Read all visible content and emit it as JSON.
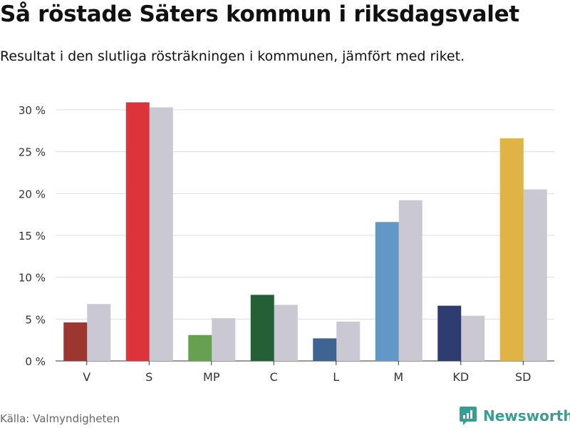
{
  "title": "Så röstade Säters kommun i riksdagsvalet",
  "subtitle": "Resultat i den slutliga rösträkningen i kommunen, jämfört med riket.",
  "source": "Källa: Valmyndigheten",
  "brand": {
    "name": "Newsworthy",
    "icon": "bar-chart-badge-icon",
    "color": "#3a9d92"
  },
  "chart_data": {
    "type": "bar",
    "categories": [
      "V",
      "S",
      "MP",
      "C",
      "L",
      "M",
      "KD",
      "SD"
    ],
    "series": [
      {
        "values": [
          4.6,
          30.9,
          3.1,
          7.9,
          2.7,
          16.6,
          6.6,
          26.6
        ],
        "colors": [
          "#9b3631",
          "#dd343c",
          "#65a151",
          "#245f36",
          "#3e6592",
          "#6198c8",
          "#2e3c71",
          "#dfb346"
        ]
      },
      {
        "values": [
          6.8,
          30.3,
          5.1,
          6.7,
          4.7,
          19.2,
          5.4,
          20.5
        ],
        "color": "#c9c8d3"
      }
    ],
    "y_ticks": [
      0,
      5,
      10,
      15,
      20,
      25,
      30
    ],
    "y_tick_labels": [
      "0 %",
      "5 %",
      "10 %",
      "15 %",
      "20 %",
      "25 %",
      "30 %"
    ],
    "ylim": [
      0,
      30
    ],
    "grid": true,
    "legend": "none",
    "title": "",
    "xlabel": "",
    "ylabel": ""
  }
}
